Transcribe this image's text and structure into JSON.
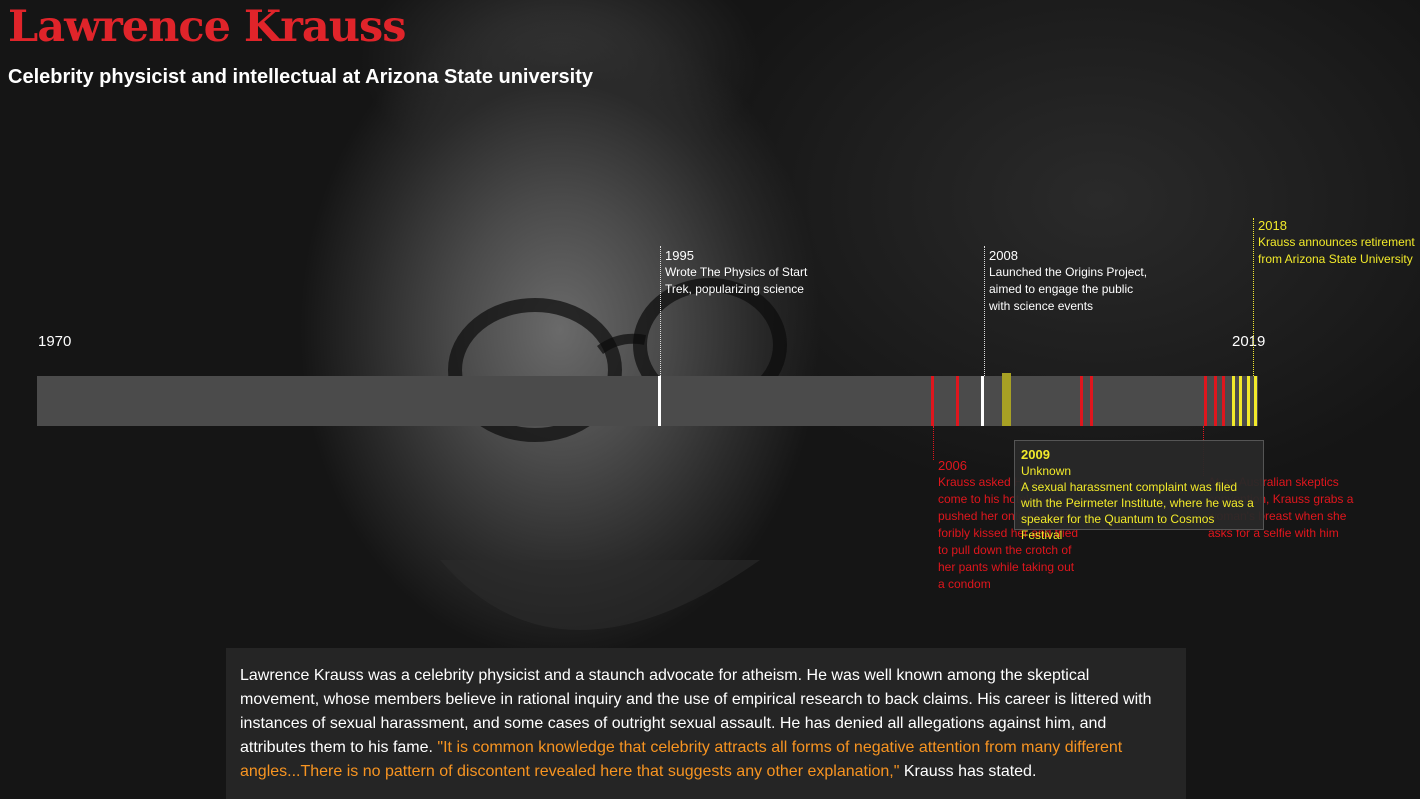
{
  "header": {
    "title": "Lawrence Krauss",
    "subtitle": "Celebrity physicist and intellectual at Arizona State university"
  },
  "timeline": {
    "start_label": "1970",
    "end_label": "2019",
    "start_year": 1970,
    "end_year": 2019,
    "bar_color": "#4b4b4b",
    "colors": {
      "career": "#ffffff",
      "assault": "#e0161d",
      "harassment": "#f2ea2a",
      "selected": "#a7a124"
    },
    "ticks": [
      {
        "year": 1995.0,
        "kind": "career"
      },
      {
        "year": 2006.0,
        "kind": "assault"
      },
      {
        "year": 2007.0,
        "kind": "assault"
      },
      {
        "year": 2008.0,
        "kind": "career"
      },
      {
        "year": 2009.0,
        "kind": "selected"
      },
      {
        "year": 2012.0,
        "kind": "assault"
      },
      {
        "year": 2012.4,
        "kind": "assault"
      },
      {
        "year": 2017.0,
        "kind": "assault"
      },
      {
        "year": 2017.4,
        "kind": "assault"
      },
      {
        "year": 2017.7,
        "kind": "assault"
      },
      {
        "year": 2018.1,
        "kind": "harassment"
      },
      {
        "year": 2018.4,
        "kind": "harassment"
      },
      {
        "year": 2018.7,
        "kind": "harassment"
      },
      {
        "year": 2019.0,
        "kind": "harassment"
      }
    ],
    "annotations_above": [
      {
        "year_label": "1995",
        "text": "Wrote The Physics of Start Trek, popularizing science",
        "color": "white"
      },
      {
        "year_label": "2008",
        "text": "Launched the Origins Project, aimed to engage the public with science events",
        "color": "white"
      },
      {
        "year_label": "2018",
        "text": "Krauss announces retirement from Arizona State University",
        "color": "yellow"
      }
    ],
    "annotations_below": [
      {
        "year_label": "2006",
        "text": "Krauss asked Hensley to come to his hotel room, pushed her onto the bed, foribly kissed her and tried to pull down the crotch of her pants while taking out a condom",
        "color": "red"
      },
      {
        "text": "At an Australian skeptics convention, Krauss grabs a woman's breast when she asks for a selfie with him",
        "color": "red"
      }
    ],
    "tooltip": {
      "year_label": "2009",
      "category": "Unknown",
      "text": "A sexual harassment complaint was filed with the Peirmeter Institute, where he was a speaker for the Quantum to Cosmos Festival"
    }
  },
  "summary": {
    "text": "Lawrence Krauss was a celebrity physicist and a staunch advocate for atheism. He was well known among the skeptical movement, whose members believe in rational inquiry and the use of empirical research to back claims. His career is littered with instances of sexual harassment, and some cases of outright sexual assault. He has denied all allegations against him, and attributes them to his fame. ",
    "quote": "\"It is common knowledge that celebrity attracts all forms of negative attention from many different angles...There is no pattern of discontent revealed here that suggests any other explanation,\"",
    "quote_suffix": " Krauss has stated."
  }
}
